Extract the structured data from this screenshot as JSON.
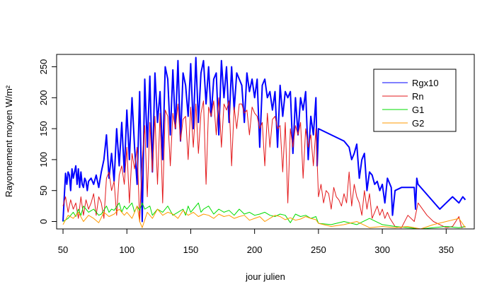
{
  "chart_data": {
    "type": "line",
    "title": "",
    "xlabel": "jour julien",
    "ylabel": "Rayonnement moyen W/m²",
    "xlim": [
      45,
      372
    ],
    "ylim": [
      -12,
      270
    ],
    "xticks": [
      50,
      100,
      150,
      200,
      250,
      300,
      350
    ],
    "yticks": [
      0,
      50,
      100,
      150,
      200,
      250
    ],
    "grid": false,
    "legend_position": "top-right",
    "series": [
      {
        "name": "Rgx10",
        "color": "#0000ff",
        "x": [
          50,
          51,
          52,
          53,
          54,
          55,
          56,
          57,
          58,
          59,
          60,
          61,
          62,
          63,
          64,
          65,
          66,
          67,
          68,
          69,
          70,
          72,
          74,
          76,
          78,
          80,
          82,
          84,
          86,
          88,
          90,
          92,
          94,
          96,
          98,
          100,
          102,
          104,
          106,
          108,
          110,
          112,
          114,
          116,
          118,
          120,
          122,
          124,
          126,
          128,
          130,
          132,
          134,
          136,
          138,
          140,
          142,
          144,
          146,
          148,
          150,
          152,
          154,
          156,
          158,
          160,
          162,
          164,
          166,
          168,
          170,
          172,
          174,
          176,
          178,
          180,
          182,
          184,
          186,
          188,
          190,
          192,
          194,
          196,
          198,
          200,
          202,
          204,
          206,
          208,
          210,
          212,
          214,
          216,
          218,
          220,
          222,
          224,
          226,
          228,
          230,
          232,
          234,
          236,
          238,
          240,
          242,
          244,
          246,
          248,
          249,
          250,
          260,
          270,
          274,
          276,
          278,
          280,
          282,
          284,
          286,
          288,
          290,
          292,
          294,
          296,
          298,
          300,
          302,
          304,
          306,
          307,
          308,
          310,
          315,
          320,
          325,
          326,
          327,
          328,
          345,
          350,
          355,
          360,
          363,
          365
        ],
        "y": [
          0,
          40,
          78,
          60,
          80,
          75,
          50,
          85,
          70,
          80,
          90,
          60,
          85,
          55,
          80,
          60,
          55,
          70,
          65,
          50,
          65,
          70,
          60,
          75,
          55,
          80,
          100,
          140,
          70,
          110,
          65,
          150,
          90,
          160,
          80,
          180,
          100,
          200,
          120,
          60,
          210,
          0,
          230,
          120,
          235,
          80,
          240,
          160,
          210,
          100,
          250,
          230,
          140,
          245,
          150,
          260,
          130,
          240,
          220,
          170,
          255,
          150,
          265,
          160,
          240,
          260,
          190,
          250,
          170,
          230,
          240,
          140,
          260,
          200,
          250,
          160,
          250,
          180,
          240,
          230,
          220,
          160,
          240,
          210,
          230,
          200,
          230,
          120,
          220,
          230,
          200,
          210,
          180,
          210,
          120,
          220,
          170,
          210,
          200,
          210,
          110,
          200,
          140,
          200,
          180,
          210,
          100,
          170,
          140,
          200,
          90,
          150,
          140,
          130,
          120,
          100,
          110,
          125,
          70,
          100,
          110,
          50,
          80,
          75,
          60,
          65,
          50,
          60,
          30,
          70,
          60,
          55,
          10,
          50,
          55,
          55,
          55,
          20,
          70,
          60,
          20,
          30,
          40,
          30,
          40,
          35
        ]
      },
      {
        "name": "Rn",
        "color": "#e31a1c",
        "x": [
          50,
          52,
          54,
          56,
          58,
          60,
          62,
          64,
          66,
          68,
          70,
          72,
          74,
          76,
          78,
          80,
          82,
          84,
          86,
          88,
          90,
          92,
          94,
          96,
          98,
          100,
          102,
          104,
          106,
          108,
          110,
          112,
          114,
          116,
          118,
          120,
          122,
          124,
          126,
          128,
          130,
          132,
          134,
          136,
          138,
          140,
          142,
          144,
          146,
          148,
          150,
          152,
          154,
          156,
          158,
          160,
          162,
          164,
          166,
          168,
          170,
          172,
          174,
          176,
          178,
          180,
          182,
          184,
          186,
          188,
          190,
          192,
          194,
          196,
          198,
          200,
          202,
          204,
          206,
          208,
          210,
          212,
          214,
          216,
          218,
          220,
          222,
          224,
          226,
          228,
          230,
          232,
          234,
          236,
          238,
          240,
          242,
          244,
          246,
          248,
          250,
          252,
          254,
          256,
          258,
          260,
          262,
          264,
          266,
          268,
          270,
          272,
          274,
          276,
          278,
          280,
          282,
          284,
          286,
          288,
          290,
          292,
          294,
          296,
          298,
          300,
          302,
          304,
          306,
          310,
          315,
          320,
          325,
          328,
          335,
          340,
          345,
          350,
          355,
          360,
          362,
          365
        ],
        "y": [
          25,
          40,
          15,
          35,
          20,
          30,
          5,
          40,
          10,
          35,
          20,
          30,
          45,
          10,
          40,
          30,
          5,
          70,
          80,
          50,
          65,
          10,
          75,
          90,
          60,
          120,
          30,
          110,
          85,
          120,
          0,
          100,
          155,
          40,
          160,
          80,
          170,
          60,
          175,
          30,
          180,
          170,
          90,
          175,
          150,
          190,
          130,
          165,
          170,
          100,
          185,
          120,
          190,
          110,
          175,
          195,
          60,
          185,
          170,
          195,
          140,
          200,
          120,
          190,
          180,
          195,
          90,
          185,
          150,
          190,
          190,
          175,
          180,
          140,
          185,
          175,
          170,
          150,
          160,
          90,
          175,
          120,
          165,
          170,
          150,
          155,
          80,
          160,
          30,
          150,
          120,
          155,
          140,
          160,
          70,
          150,
          120,
          140,
          90,
          150,
          40,
          60,
          30,
          50,
          45,
          20,
          55,
          40,
          35,
          25,
          45,
          30,
          80,
          25,
          60,
          40,
          30,
          10,
          50,
          20,
          45,
          5,
          15,
          25,
          10,
          20,
          5,
          15,
          5,
          -8,
          -10,
          10,
          0,
          30,
          10,
          0,
          -5,
          -10,
          -8,
          8,
          -10,
          -8
        ]
      },
      {
        "name": "G1",
        "color": "#00dd00",
        "x": [
          50,
          54,
          58,
          60,
          62,
          64,
          66,
          70,
          74,
          78,
          80,
          84,
          86,
          88,
          90,
          94,
          96,
          98,
          100,
          104,
          106,
          108,
          110,
          112,
          114,
          118,
          120,
          124,
          128,
          132,
          136,
          140,
          144,
          146,
          148,
          150,
          152,
          156,
          158,
          160,
          164,
          168,
          172,
          176,
          180,
          184,
          188,
          192,
          196,
          200,
          204,
          208,
          212,
          216,
          220,
          224,
          228,
          232,
          236,
          240,
          244,
          248,
          250,
          260,
          270,
          280,
          290,
          300,
          310,
          320,
          330,
          340,
          350,
          360,
          365
        ],
        "y": [
          0,
          5,
          15,
          8,
          20,
          10,
          25,
          15,
          20,
          10,
          12,
          25,
          15,
          20,
          18,
          30,
          15,
          25,
          20,
          30,
          15,
          25,
          18,
          30,
          20,
          25,
          10,
          20,
          15,
          25,
          10,
          15,
          20,
          10,
          25,
          15,
          20,
          30,
          15,
          20,
          25,
          12,
          20,
          15,
          18,
          10,
          20,
          12,
          15,
          10,
          12,
          15,
          10,
          8,
          12,
          10,
          -2,
          12,
          8,
          10,
          5,
          8,
          -3,
          -5,
          0,
          -5,
          5,
          -5,
          -8,
          -10,
          -12,
          -10,
          -8,
          -10,
          -8
        ]
      },
      {
        "name": "G2",
        "color": "#ff9900",
        "x": [
          50,
          54,
          58,
          62,
          66,
          70,
          74,
          78,
          82,
          86,
          90,
          94,
          98,
          100,
          104,
          108,
          110,
          112,
          116,
          120,
          124,
          128,
          132,
          136,
          140,
          144,
          148,
          152,
          156,
          160,
          164,
          168,
          172,
          176,
          180,
          184,
          188,
          192,
          196,
          200,
          204,
          208,
          212,
          216,
          220,
          224,
          228,
          232,
          236,
          240,
          244,
          248,
          250,
          260,
          270,
          280,
          290,
          300,
          310,
          320,
          330,
          340,
          350,
          360,
          365
        ],
        "y": [
          -5,
          10,
          5,
          15,
          0,
          10,
          5,
          -2,
          15,
          8,
          12,
          20,
          10,
          15,
          5,
          25,
          0,
          -10,
          15,
          5,
          20,
          10,
          15,
          12,
          5,
          18,
          10,
          15,
          8,
          12,
          10,
          5,
          12,
          8,
          10,
          5,
          8,
          10,
          2,
          5,
          8,
          0,
          5,
          10,
          8,
          3,
          6,
          2,
          4,
          8,
          5,
          3,
          -3,
          -8,
          -5,
          0,
          -10,
          -8,
          -10,
          -8,
          -12,
          -5,
          0,
          5,
          -10
        ]
      }
    ]
  }
}
